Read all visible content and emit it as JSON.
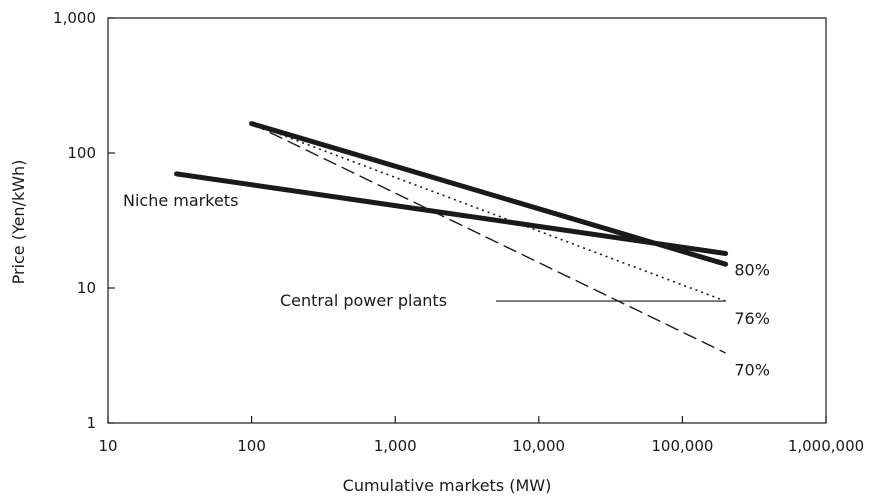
{
  "chart_data": {
    "type": "line",
    "title": "",
    "xlabel": "Cumulative markets (MW)",
    "ylabel": "Price (Yen/kWh)",
    "x_scale": "log",
    "y_scale": "log",
    "xlim": [
      10,
      1000000
    ],
    "ylim": [
      1,
      1000
    ],
    "grid": false,
    "x_ticks": [
      10,
      100,
      1000,
      10000,
      100000,
      1000000
    ],
    "x_tick_labels": [
      "10",
      "100",
      "1,000",
      "10,000",
      "100,000",
      "1,000,000"
    ],
    "y_ticks": [
      1,
      10,
      100,
      1000
    ],
    "y_tick_labels": [
      "1",
      "10",
      "100",
      "1,000"
    ],
    "series": [
      {
        "style": "solid-thick",
        "x": [
          100,
          200000
        ],
        "y": [
          165,
          15
        ]
      },
      {
        "style": "dotted",
        "x": [
          100,
          200000
        ],
        "y": [
          165,
          8
        ]
      },
      {
        "style": "dashed",
        "x": [
          100,
          200000
        ],
        "y": [
          165,
          3.3
        ]
      },
      {
        "style": "solid-thick",
        "x": [
          30,
          200000
        ],
        "y": [
          70,
          18
        ]
      }
    ],
    "annotations": [
      {
        "text": "Niche markets",
        "x": 30,
        "y": 55,
        "anchor": "end"
      },
      {
        "text": "80%",
        "x": 230000,
        "y": 13.5,
        "anchor": "start"
      },
      {
        "text": "76%",
        "x": 230000,
        "y": 5.9,
        "anchor": "start"
      },
      {
        "text": "70%",
        "x": 230000,
        "y": 2.45,
        "anchor": "start"
      },
      {
        "text": "Central power plants",
        "x": 2500,
        "y": 8,
        "anchor": "end",
        "leader_to": 200000
      }
    ]
  }
}
